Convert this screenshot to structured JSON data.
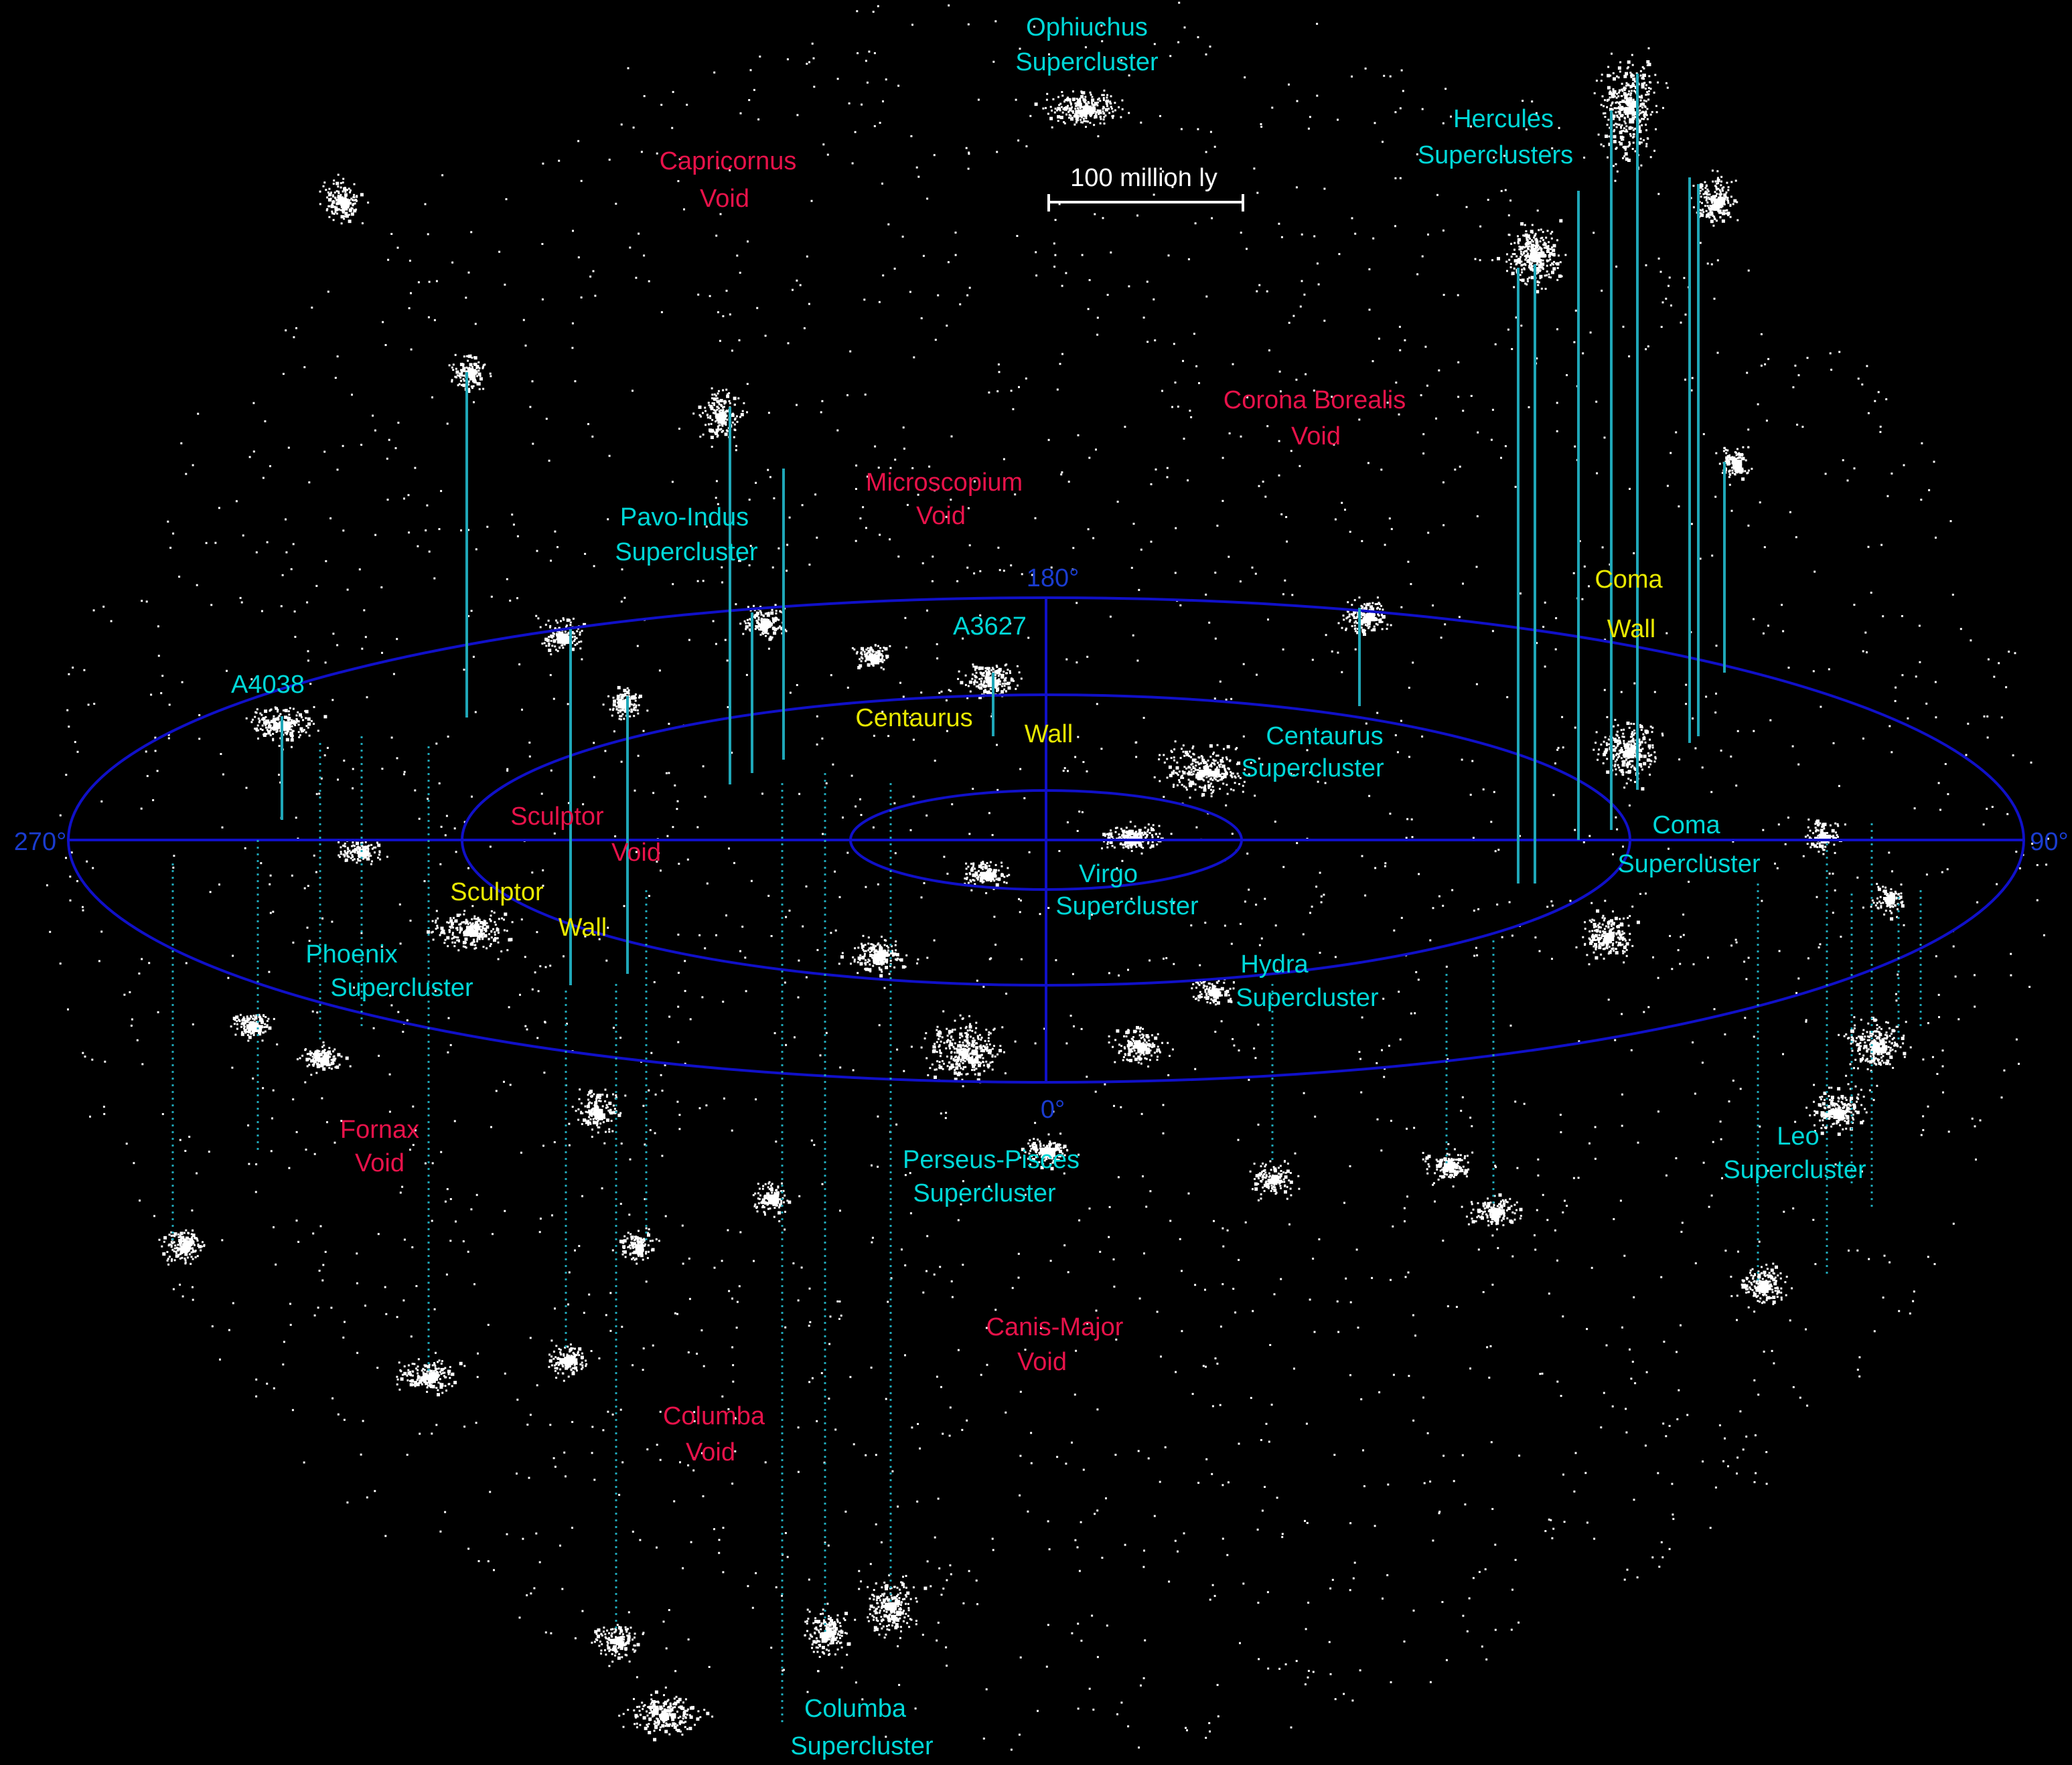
{
  "colors": {
    "background": "#000000",
    "supercluster": "#00d8d8",
    "void": "#e8124a",
    "wall": "#e8e800",
    "grid": "#1010c8",
    "stars": "#ffffff"
  },
  "scale_bar": {
    "label": "100 million ly"
  },
  "angles": {
    "a180": "180°",
    "a270": "270°",
    "a90": "90°",
    "a0": "0°"
  },
  "superclusters": [
    {
      "line1": "Ophiuchus",
      "line2": "Supercluster"
    },
    {
      "line1": "Hercules",
      "line2": "Superclusters"
    },
    {
      "line1": "Pavo-Indus",
      "line2": "Supercluster"
    },
    {
      "line1": "A3627",
      "line2": ""
    },
    {
      "line1": "A4038",
      "line2": ""
    },
    {
      "line1": "Centaurus",
      "line2": "Supercluster"
    },
    {
      "line1": "Coma",
      "line2": "Supercluster"
    },
    {
      "line1": "Virgo",
      "line2": "Supercluster"
    },
    {
      "line1": "Phoenix",
      "line2": "Supercluster"
    },
    {
      "line1": "Hydra",
      "line2": "Supercluster"
    },
    {
      "line1": "Perseus-Pisces",
      "line2": "Supercluster"
    },
    {
      "line1": "Leo",
      "line2": "Supercluster"
    },
    {
      "line1": "Columba",
      "line2": "Supercluster"
    }
  ],
  "voids": [
    {
      "line1": "Capricornus",
      "line2": "Void"
    },
    {
      "line1": "Corona Borealis",
      "line2": "Void"
    },
    {
      "line1": "Microscopium",
      "line2": "Void"
    },
    {
      "line1": "Sculptor",
      "line2": "Void"
    },
    {
      "line1": "Fornax",
      "line2": "Void"
    },
    {
      "line1": "Canis-Major",
      "line2": "Void"
    },
    {
      "line1": "Columba",
      "line2": "Void"
    }
  ],
  "walls": [
    {
      "line1": "Coma",
      "line2": "Wall"
    },
    {
      "line1": "Centaurus",
      "line2": "Wall"
    },
    {
      "line1": "Sculptor",
      "line2": "Wall"
    }
  ]
}
